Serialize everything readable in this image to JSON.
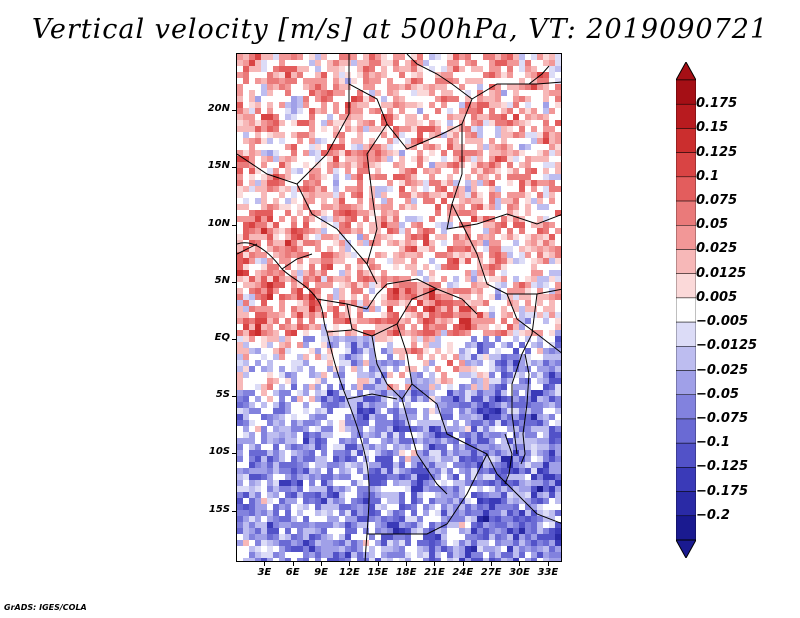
{
  "title": "Vertical velocity [m/s] at 500hPa, VT: 2019090721",
  "footer": "GrADS: IGES/COLA",
  "map": {
    "lat_labels": [
      "20N",
      "15N",
      "10N",
      "5N",
      "EQ",
      "5S",
      "10S",
      "15S"
    ],
    "lat_values": [
      20,
      15,
      10,
      5,
      0,
      -5,
      -10,
      -15
    ],
    "lon_labels": [
      "3E",
      "6E",
      "9E",
      "12E",
      "15E",
      "18E",
      "21E",
      "24E",
      "27E",
      "30E",
      "33E"
    ],
    "lon_values": [
      3,
      6,
      9,
      12,
      15,
      18,
      21,
      24,
      27,
      30,
      33
    ],
    "lon_range": [
      0,
      34.5
    ],
    "lat_range": [
      -19.5,
      25
    ],
    "field": "vertical velocity",
    "units": "m/s",
    "level": "500hPa",
    "valid_time": "2019090721"
  },
  "colorbar": {
    "labels": [
      "0.175",
      "0.15",
      "0.125",
      "0.1",
      "0.075",
      "0.05",
      "0.025",
      "0.0125",
      "0.005",
      "−0.005",
      "−0.0125",
      "−0.025",
      "−0.05",
      "−0.075",
      "−0.1",
      "−0.125",
      "−0.175",
      "−0.2"
    ],
    "colors": [
      "#a50f15",
      "#b81b1f",
      "#cb2e2e",
      "#d94444",
      "#e35d5d",
      "#ea7a7a",
      "#f29797",
      "#f7b8b8",
      "#fbd9d9",
      "#ffffff",
      "#dcdcf7",
      "#bdbdf0",
      "#a0a0e8",
      "#8282de",
      "#6a6ad4",
      "#5252c8",
      "#3a3ab8",
      "#2a2aa6",
      "#1a1a90"
    ],
    "top_color": "#a50f15",
    "bottom_color": "#1a1a90"
  }
}
